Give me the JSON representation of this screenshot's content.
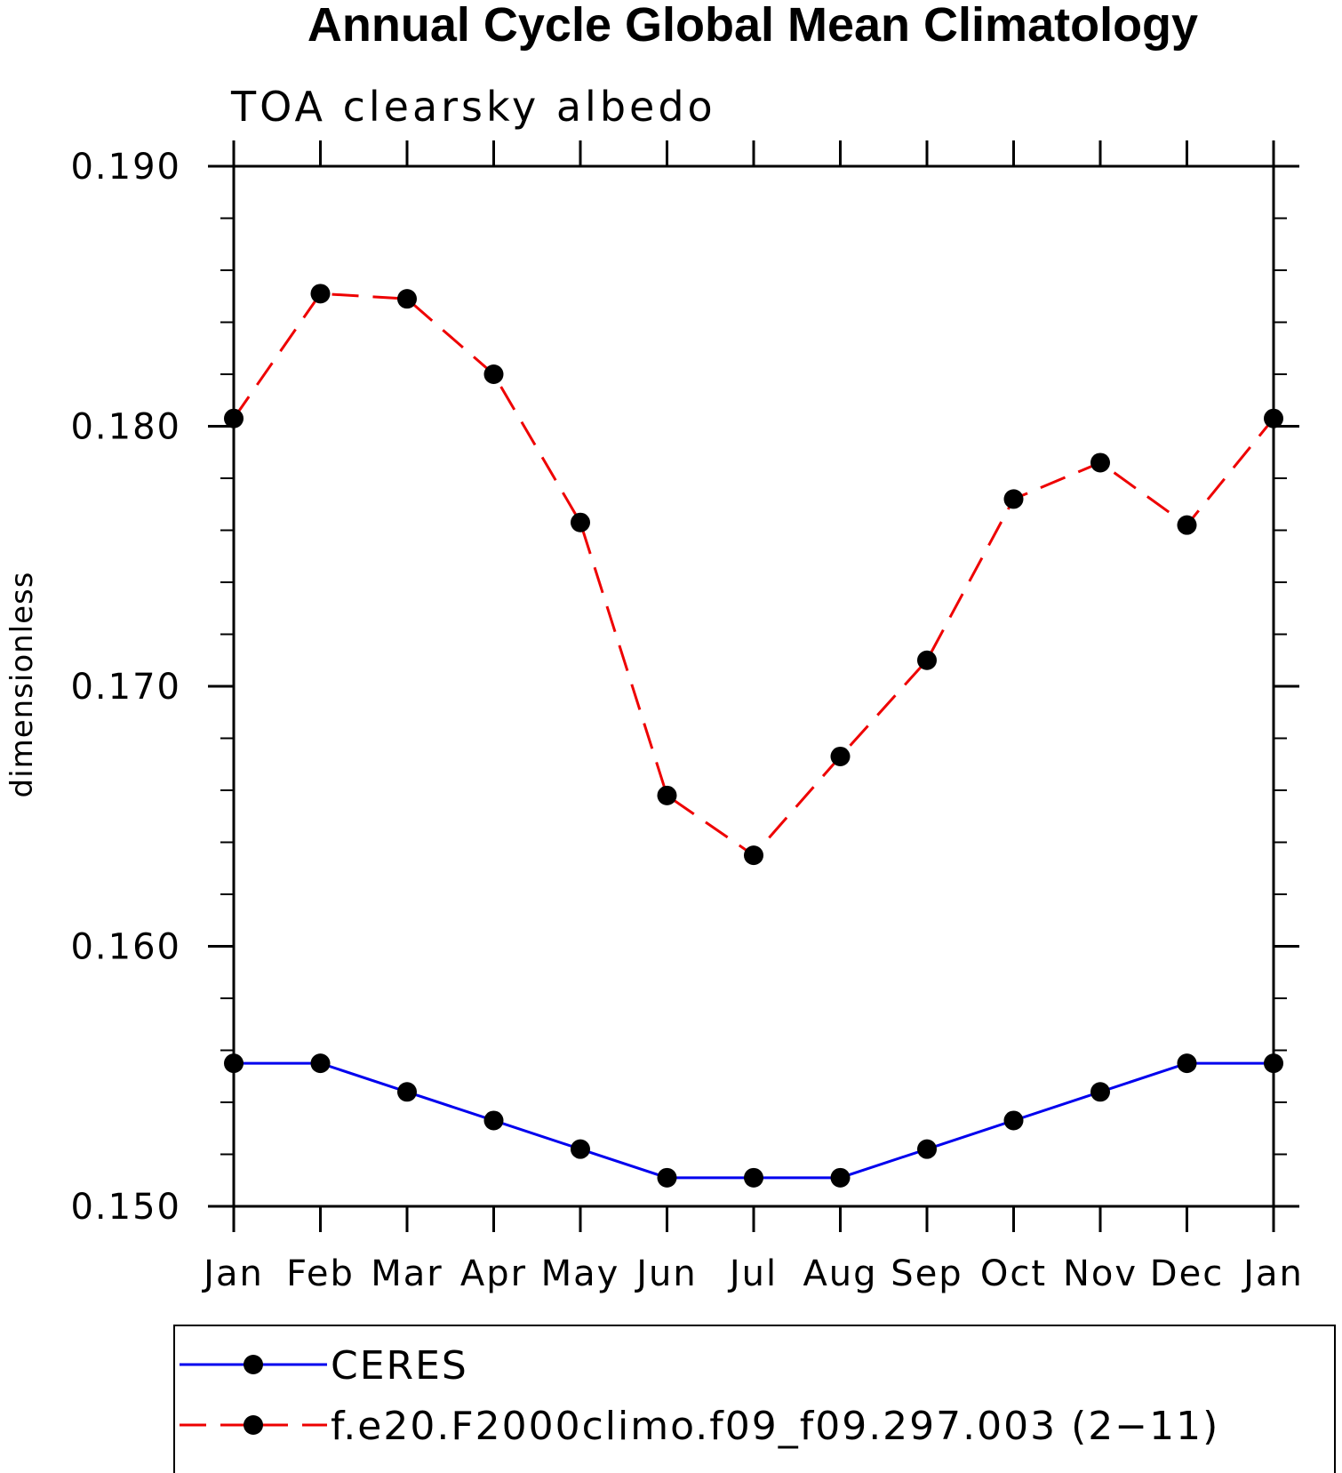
{
  "chart_data": {
    "type": "line",
    "title": "Annual Cycle Global Mean Climatology",
    "subtitle": "TOA clearsky albedo",
    "xlabel": "",
    "ylabel": "dimensionless",
    "categories": [
      "Jan",
      "Feb",
      "Mar",
      "Apr",
      "May",
      "Jun",
      "Jul",
      "Aug",
      "Sep",
      "Oct",
      "Nov",
      "Dec",
      "Jan"
    ],
    "ylim": [
      0.15,
      0.19
    ],
    "yticks": [
      0.15,
      0.16,
      0.17,
      0.18,
      0.19
    ],
    "ytick_labels": [
      "0.150",
      "0.160",
      "0.170",
      "0.180",
      "0.190"
    ],
    "minor_ytick_step": 0.002,
    "grid": false,
    "legend_position": "bottom",
    "series": [
      {
        "name": "CERES",
        "color": "#0000ee",
        "line_style": "solid",
        "marker": "circle",
        "values": [
          0.1555,
          0.1555,
          0.1544,
          0.1533,
          0.1522,
          0.1511,
          0.1511,
          0.1511,
          0.1522,
          0.1533,
          0.1544,
          0.1555,
          0.1555
        ]
      },
      {
        "name": "f.e20.F2000climo.f09_f09.297.003 (2−11)",
        "color": "#ee0000",
        "line_style": "dashed",
        "marker": "circle",
        "values": [
          0.1803,
          0.1851,
          0.1849,
          0.182,
          0.1763,
          0.1658,
          0.1635,
          0.1673,
          0.171,
          0.1772,
          0.1786,
          0.1762,
          0.1803
        ]
      }
    ]
  }
}
